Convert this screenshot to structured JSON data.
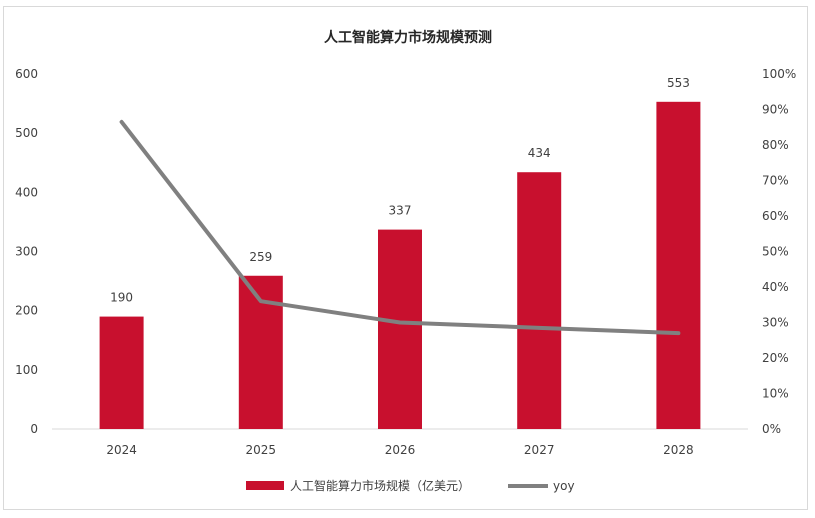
{
  "chart_data": {
    "type": "bar",
    "title": "人工智能算力市场规模预测",
    "categories": [
      "2024",
      "2025",
      "2026",
      "2027",
      "2028"
    ],
    "series": [
      {
        "name": "人工智能算力市场规模（亿美元）",
        "type": "bar",
        "axis": "left",
        "color": "#c8102e",
        "values": [
          190,
          259,
          337,
          434,
          553
        ]
      },
      {
        "name": "yoy",
        "type": "line",
        "axis": "right",
        "color": "#808080",
        "values": [
          0.865,
          0.36,
          0.3,
          0.285,
          0.27
        ]
      }
    ],
    "y_left": {
      "min": 0,
      "max": 600,
      "ticks": [
        "0",
        "100",
        "200",
        "300",
        "400",
        "500",
        "600"
      ]
    },
    "y_right": {
      "min": 0,
      "max": 1,
      "ticks": [
        "0%",
        "10%",
        "20%",
        "30%",
        "40%",
        "50%",
        "60%",
        "70%",
        "80%",
        "90%",
        "100%"
      ]
    },
    "data_labels": [
      "190",
      "259",
      "337",
      "434",
      "553"
    ],
    "grid": false,
    "legend": "bottom"
  }
}
